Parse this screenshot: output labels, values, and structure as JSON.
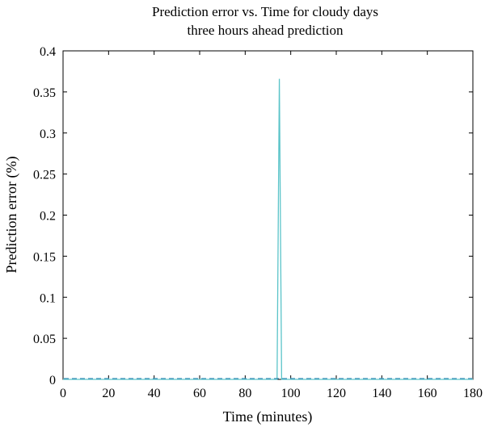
{
  "chart_data": {
    "type": "line",
    "title": "Prediction error vs. Time for cloudy days",
    "subtitle": "three hours ahead prediction",
    "xlabel": "Time (minutes)",
    "ylabel": "Prediction error (%)",
    "xlim": [
      0,
      180
    ],
    "ylim": [
      0,
      0.4
    ],
    "xticks": [
      0,
      20,
      40,
      60,
      80,
      100,
      120,
      140,
      160,
      180
    ],
    "yticks": [
      0,
      0.05,
      0.1,
      0.15,
      0.2,
      0.25,
      0.3,
      0.35,
      0.4
    ],
    "ytick_labels": [
      "0",
      "0.05",
      "0.1",
      "0.15",
      "0.2",
      "0.25",
      "0.3",
      "0.35",
      "0.4"
    ],
    "grid": false,
    "series": [
      {
        "color": "#5bc4c9",
        "x": [
          0,
          20,
          40,
          60,
          80,
          94,
          95,
          96,
          100,
          120,
          140,
          160,
          180
        ],
        "y": [
          0,
          0,
          0,
          0,
          0,
          0,
          0.366,
          0,
          0,
          0,
          0,
          0,
          0
        ]
      }
    ]
  }
}
